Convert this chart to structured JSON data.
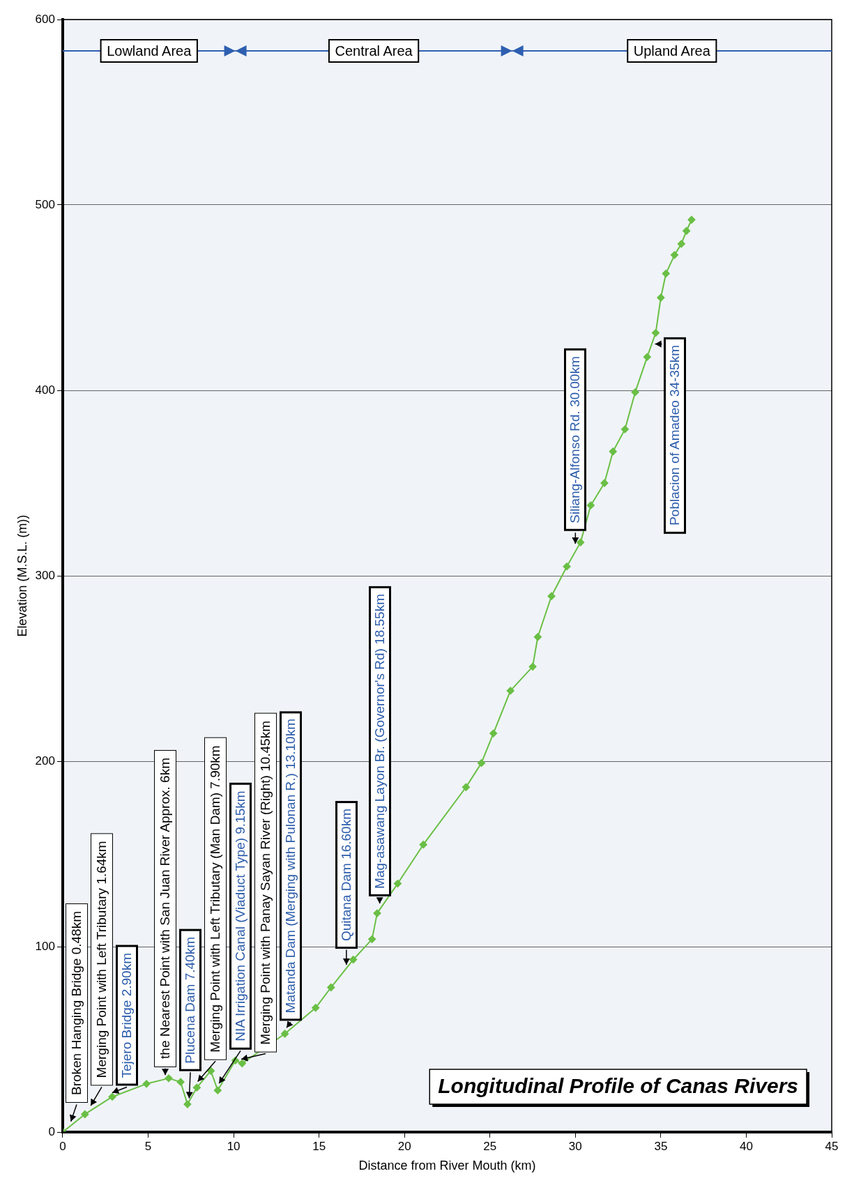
{
  "chart_data": {
    "type": "line",
    "title": "Longitudinal Profile of Canas Rivers",
    "xlabel": "Distance from River Mouth (km)",
    "ylabel": "Elevation (M.S.L. (m))",
    "x": [
      0,
      1.3,
      2.9,
      4.9,
      6.2,
      6.9,
      7.3,
      7.85,
      8.67,
      9.07,
      10.1,
      10.5,
      13.0,
      14.8,
      15.7,
      17.0,
      18.1,
      18.4,
      19.6,
      21.1,
      23.6,
      24.5,
      25.2,
      26.2,
      27.5,
      27.8,
      28.6,
      29.5,
      30.3,
      30.9,
      31.7,
      32.2,
      32.9,
      33.5,
      34.2,
      34.7,
      35.0,
      35.3,
      35.8,
      36.2,
      36.5,
      36.8
    ],
    "series": [
      {
        "color": "#6abf45",
        "values": [
          0,
          9.6,
          19,
          26,
          29,
          27,
          15,
          24,
          33,
          22.5,
          38.6,
          37,
          53,
          67,
          78,
          93,
          104,
          118,
          134,
          155,
          186,
          199,
          215,
          238,
          251,
          267,
          289,
          305,
          318,
          338,
          350,
          367,
          379,
          399,
          418,
          431,
          450,
          463,
          473,
          479,
          486,
          492
        ]
      }
    ],
    "xlim": [
      0,
      45
    ],
    "xticks": [
      0,
      5,
      10,
      15,
      20,
      25,
      30,
      35,
      40,
      45
    ],
    "ylim": [
      0,
      600
    ],
    "yticks": [
      0,
      100,
      200,
      300,
      400,
      500,
      600
    ],
    "grid": "y",
    "marker": "diamond",
    "bands": [
      {
        "axis": "x",
        "from": 0,
        "to": 10.1,
        "label": "Lowland Area",
        "color": "#2e5fb0"
      },
      {
        "axis": "x",
        "from": 10.1,
        "to": 26.3,
        "label": "Central Area",
        "color": "#2e5fb0"
      },
      {
        "axis": "x",
        "from": 26.3,
        "to": 45,
        "label": "Upland Area",
        "color": "#2e5fb0"
      }
    ],
    "annotations": [
      {
        "text": "Broken Hanging Bridge 0.48km",
        "x": 0.48,
        "y": 3.5
      },
      {
        "text": "Merging Point with Left Tributary 1.64km",
        "x": 1.64,
        "y": 12
      },
      {
        "text": "Tejero Bridge 2.90km",
        "x": 2.9,
        "y": 19
      },
      {
        "text": "the Nearest Point with San Juan River Approx. 6km",
        "x": 6,
        "y": 28.5
      },
      {
        "text": "Plucena Dam 7.40km",
        "x": 7.4,
        "y": 16
      },
      {
        "text": "Merging Point with Left Tributary (Man Dam) 7.90km",
        "x": 7.9,
        "y": 25
      },
      {
        "text": "NIA Irrigation Canal (Viaduct Type) 9.15km",
        "x": 9.15,
        "y": 24
      },
      {
        "text": "Merging Point with Panay Sayan River (Right) 10.45km",
        "x": 10.45,
        "y": 37
      },
      {
        "text": "Matanda Dam (Merging with Pulonan R.) 13.10km",
        "x": 13.1,
        "y": 54
      },
      {
        "text": "Quitana Dam 16.60km",
        "x": 16.6,
        "y": 88
      },
      {
        "text": "Mag-asawang Layon Br. (Governor's Rd) 18.55km",
        "x": 18.55,
        "y": 121
      },
      {
        "text": "Siliang-Alfonso Rd. 30.00km",
        "x": 30,
        "y": 315
      },
      {
        "text": "Poblacion of Amadeo 34-35km",
        "x": 34.5,
        "y": 425
      }
    ]
  }
}
